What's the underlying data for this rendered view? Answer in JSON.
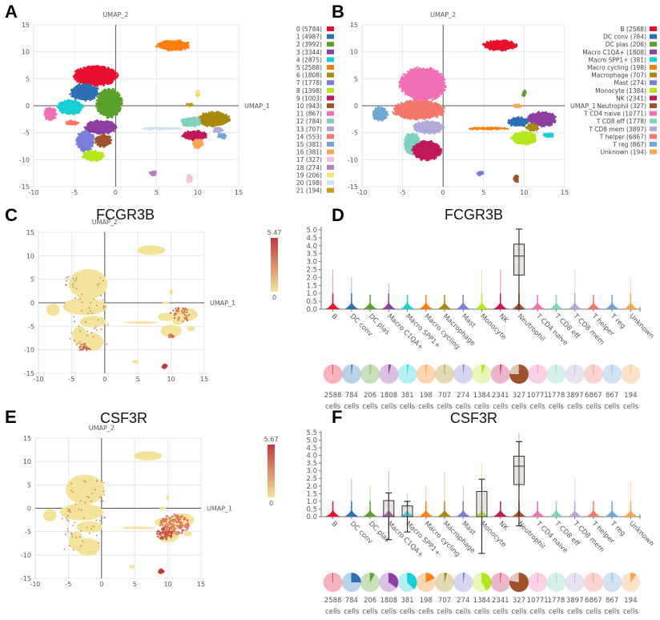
{
  "panels": {
    "A": {
      "letter": "A"
    },
    "B": {
      "letter": "B"
    },
    "C": {
      "letter": "C",
      "title": "FCGR3B"
    },
    "D": {
      "letter": "D",
      "title": "FCGR3B"
    },
    "E": {
      "letter": "E",
      "title": "CSF3R"
    },
    "F": {
      "letter": "F",
      "title": "CSF3R"
    }
  },
  "palette": [
    "#e8112d",
    "#2d6fb5",
    "#5ba02c",
    "#8e3fa3",
    "#17cfd6",
    "#ff7f0e",
    "#a8880e",
    "#7b7ed6",
    "#b5e61d",
    "#c2185b",
    "#a0522d",
    "#f06fb5",
    "#7fd1c1",
    "#b3a9d9",
    "#f4766b",
    "#6fa6d6",
    "#f7a654",
    "#f9c0dc",
    "#b07ec6",
    "#f5e26a",
    "#c9e3f5",
    "#c99a1f"
  ],
  "chart_data": [
    {
      "id": "A",
      "type": "scatter",
      "title": "",
      "xlabel": "UMAP_1",
      "ylabel": "UMAP_2",
      "xlim": [
        -10,
        15
      ],
      "ylim": [
        -15,
        15
      ],
      "xticks": [
        -10,
        -5,
        0,
        5,
        10,
        15
      ],
      "yticks": [
        15,
        10,
        5,
        0,
        -5,
        -10,
        -15
      ],
      "grid": true,
      "legend_position": "right",
      "legend": [
        "0 (5784)",
        "1 (4987)",
        "2 (3992)",
        "3 (3344)",
        "4 (2875)",
        "5 (2588)",
        "6 (1808)",
        "7 (1778)",
        "8 (1398)",
        "9 (1003)",
        "10 (943)",
        "11 (867)",
        "12 (784)",
        "13 (707)",
        "14 (553)",
        "15 (381)",
        "16 (381)",
        "17 (327)",
        "18 (274)",
        "19 (206)",
        "20 (198)",
        "21 (194)"
      ],
      "clusters": [
        {
          "name": "0",
          "color": "#e8112d",
          "cx": -2.5,
          "cy": 5.5,
          "rx": 2.8,
          "ry": 1.9
        },
        {
          "name": "1",
          "color": "#2d6fb5",
          "cx": -3.8,
          "cy": 2.5,
          "rx": 1.8,
          "ry": 1.6
        },
        {
          "name": "2",
          "color": "#5ba02c",
          "cx": -0.8,
          "cy": 0.5,
          "rx": 1.6,
          "ry": 2.8
        },
        {
          "name": "3",
          "color": "#8e3fa3",
          "cx": -1.8,
          "cy": -4,
          "rx": 2.0,
          "ry": 1.3
        },
        {
          "name": "4",
          "color": "#17cfd6",
          "cx": -5.5,
          "cy": -0.3,
          "rx": 1.6,
          "ry": 1.4
        },
        {
          "name": "5",
          "color": "#ff7f0e",
          "cx": 7,
          "cy": 11.2,
          "rx": 2.1,
          "ry": 1.0
        },
        {
          "name": "6",
          "color": "#a8880e",
          "cx": 12,
          "cy": -2.5,
          "rx": 2.0,
          "ry": 1.4
        },
        {
          "name": "7",
          "color": "#7b7ed6",
          "cx": -3.7,
          "cy": -6.5,
          "rx": 1.1,
          "ry": 2.0
        },
        {
          "name": "8",
          "color": "#b5e61d",
          "cx": -2.7,
          "cy": -9.3,
          "rx": 1.4,
          "ry": 1.0
        },
        {
          "name": "9",
          "color": "#c2185b",
          "cx": 9.6,
          "cy": -5.5,
          "rx": 1.6,
          "ry": 0.9
        },
        {
          "name": "10",
          "color": "#a0522d",
          "cx": -1.5,
          "cy": -6.5,
          "rx": 1.0,
          "ry": 1.2
        },
        {
          "name": "11",
          "color": "#f06fb5",
          "cx": -8,
          "cy": -1.5,
          "rx": 0.8,
          "ry": 1.2
        },
        {
          "name": "12",
          "color": "#7fd1c1",
          "cx": 9.2,
          "cy": -3,
          "rx": 1.3,
          "ry": 0.9
        },
        {
          "name": "13",
          "color": "#b3a9d9",
          "cx": 12.5,
          "cy": -4.5,
          "rx": 0.6,
          "ry": 0.6
        },
        {
          "name": "14",
          "color": "#f4766b",
          "cx": -5.3,
          "cy": -3.2,
          "rx": 0.8,
          "ry": 0.5
        },
        {
          "name": "15",
          "color": "#6fa6d6",
          "cx": 13,
          "cy": -5.6,
          "rx": 0.6,
          "ry": 0.5
        },
        {
          "name": "16",
          "color": "#f7a654",
          "cx": 10,
          "cy": -7,
          "rx": 0.7,
          "ry": 0.9
        },
        {
          "name": "17",
          "color": "#f9c0dc",
          "cx": 9,
          "cy": -13.5,
          "rx": 0.35,
          "ry": 0.8
        },
        {
          "name": "18",
          "color": "#b07ec6",
          "cx": 4.6,
          "cy": -12.5,
          "rx": 0.45,
          "ry": 0.4
        },
        {
          "name": "19",
          "color": "#f5e26a",
          "cx": 10,
          "cy": 2.3,
          "rx": 0.25,
          "ry": 0.6
        },
        {
          "name": "20",
          "color": "#c9e3f5",
          "cx": 5.5,
          "cy": -4.2,
          "rx": 2.6,
          "ry": 0.25
        },
        {
          "name": "21",
          "color": "#c99a1f",
          "cx": 9,
          "cy": 0.2,
          "rx": 0.4,
          "ry": 0.25
        }
      ]
    },
    {
      "id": "B",
      "type": "scatter",
      "xlabel": "UMAP_1",
      "ylabel": "UMAP_2",
      "xlim": [
        -10,
        15
      ],
      "ylim": [
        -15,
        15
      ],
      "xticks": [
        -10,
        -5,
        0,
        5,
        10,
        15
      ],
      "yticks": [
        15,
        10,
        5,
        0,
        -5,
        -10,
        -15
      ],
      "grid": true,
      "legend_position": "right",
      "legend": [
        "B (2588)",
        "DC conv (784)",
        "DC plas (206)",
        "Macro C1QA+ (1808)",
        "Macro SPP1+ (381)",
        "Macro cycling (198)",
        "Macrophage (707)",
        "Mast (274)",
        "Monocyte (1384)",
        "NK (2341)",
        "Neutrophil (327)",
        "T CD4 naive (10771)",
        "T CD8 eff (1778)",
        "T CD8 mem (3897)",
        "T helper (6867)",
        "T reg (867)",
        "Unknown (194)"
      ],
      "clusters": [
        {
          "name": "B",
          "color": "#e8112d",
          "cx": 7,
          "cy": 11.2,
          "rx": 2.1,
          "ry": 1.0
        },
        {
          "name": "T CD4 naive",
          "color": "#f06fb5",
          "cx": -2.5,
          "cy": 4,
          "rx": 2.9,
          "ry": 3.2
        },
        {
          "name": "T helper",
          "color": "#f4766b",
          "cx": -3,
          "cy": -0.8,
          "rx": 3.3,
          "ry": 1.8
        },
        {
          "name": "T reg",
          "color": "#6fa6d6",
          "cx": -7.8,
          "cy": -1.5,
          "rx": 1.0,
          "ry": 1.3
        },
        {
          "name": "T CD8 mem",
          "color": "#b3a9d9",
          "cx": -1.8,
          "cy": -4,
          "rx": 2.0,
          "ry": 1.2
        },
        {
          "name": "T CD8 eff",
          "color": "#7fd1c1",
          "cx": -3.8,
          "cy": -7,
          "rx": 1.1,
          "ry": 2.0
        },
        {
          "name": "NK",
          "color": "#c2185b",
          "cx": -2,
          "cy": -8.3,
          "rx": 1.8,
          "ry": 1.9
        },
        {
          "name": "DC conv",
          "color": "#2d6fb5",
          "cx": 9.3,
          "cy": -3,
          "rx": 1.3,
          "ry": 0.9
        },
        {
          "name": "Macro C1QA+",
          "color": "#8e3fa3",
          "cx": 12.2,
          "cy": -2.5,
          "rx": 1.8,
          "ry": 1.4
        },
        {
          "name": "Macro SPP1+",
          "color": "#17cfd6",
          "cx": 13,
          "cy": -5.5,
          "rx": 0.6,
          "ry": 0.5
        },
        {
          "name": "Monocyte",
          "color": "#b5e61d",
          "cx": 10,
          "cy": -6,
          "rx": 1.6,
          "ry": 1.3
        },
        {
          "name": "Macrophage",
          "color": "#a8880e",
          "cx": 11,
          "cy": -4,
          "rx": 0.8,
          "ry": 0.7
        },
        {
          "name": "Macro cycling",
          "color": "#ff7f0e",
          "cx": 5.5,
          "cy": -4.2,
          "rx": 2.6,
          "ry": 0.25
        },
        {
          "name": "Unknown",
          "color": "#f7a654",
          "cx": 9.2,
          "cy": 0,
          "rx": 0.5,
          "ry": 0.3
        },
        {
          "name": "DC plas",
          "color": "#5ba02c",
          "cx": 10,
          "cy": 2.3,
          "rx": 0.25,
          "ry": 0.6
        },
        {
          "name": "Mast",
          "color": "#7b7ed6",
          "cx": 4.6,
          "cy": -12.5,
          "rx": 0.45,
          "ry": 0.4
        },
        {
          "name": "Neutrophil",
          "color": "#a0522d",
          "cx": 9,
          "cy": -13.5,
          "rx": 0.35,
          "ry": 0.8
        }
      ]
    },
    {
      "id": "C",
      "type": "scatter",
      "title": "FCGR3B",
      "xlabel": "UMAP_1",
      "ylabel": "UMAP_2",
      "xlim": [
        -10,
        15
      ],
      "ylim": [
        -15,
        15
      ],
      "xticks": [
        -10,
        -5,
        0,
        5,
        10,
        15
      ],
      "yticks": [
        15,
        10,
        5,
        0,
        -5,
        -10,
        -15
      ],
      "grid": true,
      "colorbar": {
        "min": 0,
        "max": 5.47,
        "min_label": "0",
        "max_label": "5.47",
        "low_color": "#f3e39a",
        "high_color": "#c0393b"
      },
      "high_expression_regions": [
        "Neutrophil cluster (9,-13.5)",
        "NK region (-3,-9.5)",
        "myeloid cluster (11,-3)"
      ]
    },
    {
      "id": "D",
      "type": "violin",
      "title": "FCGR3B",
      "ylim": [
        0,
        5.2
      ],
      "yticks": [
        "0.0",
        "0.5",
        "1.0",
        "1.5",
        "2.0",
        "2.5",
        "3.0",
        "3.5",
        "4.0",
        "4.5",
        "5.0"
      ],
      "categories": [
        "B",
        "DC conv",
        "DC plas",
        "Macro C1QA+",
        "Macro SPP1+",
        "Macro cycling",
        "Macrophage",
        "Mast",
        "Monocyte",
        "NK",
        "Neutrophil",
        "T CD4 naive",
        "T CD8 eff",
        "T CD8 mem",
        "T helper",
        "T reg",
        "Unknown"
      ],
      "violin_max": [
        2.5,
        2.0,
        0.9,
        1.6,
        0.9,
        0.9,
        0.9,
        0.9,
        2.5,
        2.5,
        5.0,
        0.9,
        0.9,
        2.5,
        0.9,
        0.9,
        2.0
      ],
      "boxes": [
        {
          "category": "Neutrophil",
          "q1": 2.15,
          "median": 3.35,
          "q3": 4.1,
          "whisker_low": 0,
          "whisker_high": 5.05
        }
      ],
      "cell_counts": [
        2588,
        784,
        206,
        1808,
        381,
        198,
        707,
        274,
        1384,
        2341,
        327,
        10771,
        1778,
        3897,
        6867,
        867,
        194
      ],
      "count_unit": "cells",
      "pie_fraction_expressing": [
        0.0,
        0.02,
        0.01,
        0.04,
        0.02,
        0.01,
        0.01,
        0.02,
        0.06,
        0.02,
        0.75,
        0.0,
        0.0,
        0.0,
        0.0,
        0.0,
        0.0
      ]
    },
    {
      "id": "E",
      "type": "scatter",
      "title": "CSF3R",
      "xlabel": "UMAP_1",
      "ylabel": "UMAP_2",
      "xlim": [
        -10,
        15
      ],
      "ylim": [
        -15,
        15
      ],
      "xticks": [
        -10,
        -5,
        0,
        5,
        10,
        15
      ],
      "yticks": [
        15,
        10,
        5,
        0,
        -5,
        -10,
        -15
      ],
      "grid": true,
      "colorbar": {
        "min": 0,
        "max": 5.67,
        "min_label": "0",
        "max_label": "5.67",
        "low_color": "#f3e39a",
        "high_color": "#c0393b"
      }
    },
    {
      "id": "F",
      "type": "violin",
      "title": "CSF3R",
      "ylim": [
        0,
        5.6
      ],
      "yticks": [
        "0.0",
        "0.5",
        "1.0",
        "1.5",
        "2.0",
        "2.5",
        "3.0",
        "3.5",
        "4.0",
        "4.5",
        "5.0",
        "5.5"
      ],
      "categories": [
        "B",
        "DC conv",
        "DC plas",
        "Macro C1QA+",
        "Macro SPP1+",
        "Macro cycling",
        "Macrophage",
        "Mast",
        "Monocyte",
        "NK",
        "Neutrophil",
        "T CD4 naive",
        "T CD8 eff",
        "T CD8 mem",
        "T helper",
        "T reg",
        "Unknown"
      ],
      "violin_max": [
        1.0,
        2.5,
        2.0,
        3.0,
        1.5,
        2.0,
        2.9,
        2.0,
        3.5,
        1.0,
        5.5,
        1.0,
        1.0,
        2.5,
        1.0,
        1.0,
        2.4
      ],
      "boxes": [
        {
          "category": "Macro C1QA+",
          "q1": 0,
          "median": 0,
          "q3": 1.05,
          "whisker_low": -1.5,
          "whisker_high": 1.55
        },
        {
          "category": "Macro SPP1+",
          "q1": 0,
          "median": 0,
          "q3": 0.7,
          "whisker_low": -1.0,
          "whisker_high": 1.0
        },
        {
          "category": "Monocyte",
          "q1": 0,
          "median": 0,
          "q3": 1.65,
          "whisker_low": -2.4,
          "whisker_high": 2.45
        },
        {
          "category": "Neutrophil",
          "q1": 2.1,
          "median": 3.3,
          "q3": 3.95,
          "whisker_low": -0.6,
          "whisker_high": 4.9
        }
      ],
      "cell_counts": [
        2588,
        784,
        206,
        1808,
        381,
        198,
        707,
        274,
        1384,
        2341,
        327,
        10771,
        1778,
        3897,
        6867,
        867,
        194
      ],
      "count_unit": "cells",
      "pie_fraction_expressing": [
        0.0,
        0.25,
        0.08,
        0.35,
        0.38,
        0.18,
        0.04,
        0.03,
        0.42,
        0.01,
        0.78,
        0.0,
        0.0,
        0.0,
        0.0,
        0.01,
        0.1
      ]
    }
  ],
  "cell_type_colors": [
    "#e8112d",
    "#2d6fb5",
    "#5ba02c",
    "#8e3fa3",
    "#17cfd6",
    "#ff7f0e",
    "#a8880e",
    "#7b7ed6",
    "#b5e61d",
    "#c2185b",
    "#a0522d",
    "#f06fb5",
    "#7fd1c1",
    "#b3a9d9",
    "#f4766b",
    "#6fa6d6",
    "#f7a654"
  ]
}
